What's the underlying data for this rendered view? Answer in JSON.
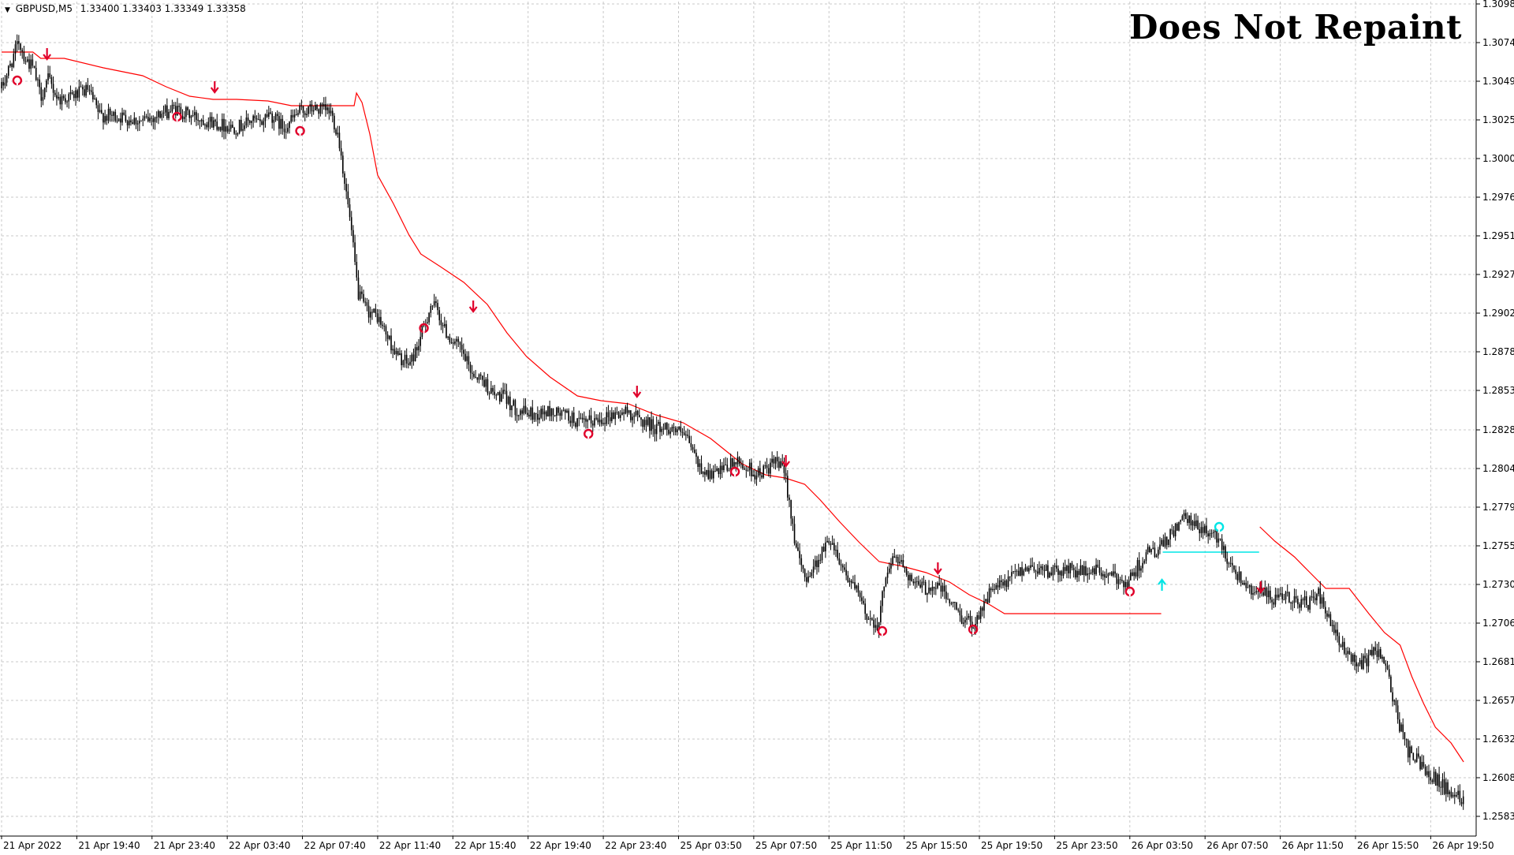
{
  "header": {
    "symbol": "GBPUSD,M5",
    "ohlc": "1.33400 1.33403 1.33349 1.33358"
  },
  "watermark": "Does Not Repaint",
  "colors": {
    "background": "#ffffff",
    "grid": "#c8c8c8",
    "candles": "#000000",
    "red_line": "#ff0000",
    "cyan_line": "#00e5e5",
    "red_arrow": "#e0002a",
    "cyan_arrow": "#00e5e5"
  },
  "chart_data": {
    "type": "candlestick",
    "title": "GBPUSD,M5",
    "ylim": [
      1.2571,
      1.31
    ],
    "xlim": [
      0,
      1880
    ],
    "price_axis_ticks": [
      "1.30985",
      "1.30740",
      "1.30495",
      "1.30250",
      "1.30005",
      "1.29760",
      "1.29515",
      "1.29270",
      "1.29025",
      "1.28780",
      "1.28535",
      "1.28285",
      "1.28040",
      "1.27795",
      "1.27550",
      "1.27305",
      "1.27060",
      "1.26815",
      "1.26570",
      "1.26325",
      "1.26080",
      "1.25835"
    ],
    "time_axis_ticks": [
      {
        "label": "21 Apr 2022",
        "x": 0
      },
      {
        "label": "21 Apr 19:40",
        "x": 96
      },
      {
        "label": "21 Apr 23:40",
        "x": 192
      },
      {
        "label": "22 Apr 03:40",
        "x": 288
      },
      {
        "label": "22 Apr 07:40",
        "x": 384
      },
      {
        "label": "22 Apr 11:40",
        "x": 480
      },
      {
        "label": "22 Apr 15:40",
        "x": 576
      },
      {
        "label": "22 Apr 19:40",
        "x": 672
      },
      {
        "label": "22 Apr 23:40",
        "x": 768
      },
      {
        "label": "25 Apr 03:50",
        "x": 864
      },
      {
        "label": "25 Apr 07:50",
        "x": 960
      },
      {
        "label": "25 Apr 11:50",
        "x": 1056
      },
      {
        "label": "25 Apr 15:50",
        "x": 1152
      },
      {
        "label": "25 Apr 19:50",
        "x": 1248
      },
      {
        "label": "25 Apr 23:50",
        "x": 1344
      },
      {
        "label": "26 Apr 03:50",
        "x": 1440
      },
      {
        "label": "26 Apr 07:50",
        "x": 1536
      },
      {
        "label": "26 Apr 11:50",
        "x": 1632
      },
      {
        "label": "26 Apr 15:50",
        "x": 1728
      },
      {
        "label": "26 Apr 19:50",
        "x": 1824
      }
    ],
    "price_path": [
      [
        0,
        1.3045
      ],
      [
        10,
        1.3058
      ],
      [
        22,
        1.3075
      ],
      [
        30,
        1.3064
      ],
      [
        40,
        1.3058
      ],
      [
        50,
        1.304
      ],
      [
        60,
        1.3051
      ],
      [
        72,
        1.3038
      ],
      [
        90,
        1.304
      ],
      [
        110,
        1.3044
      ],
      [
        125,
        1.3028
      ],
      [
        150,
        1.3027
      ],
      [
        180,
        1.3024
      ],
      [
        200,
        1.3028
      ],
      [
        220,
        1.3032
      ],
      [
        240,
        1.3028
      ],
      [
        260,
        1.3025
      ],
      [
        280,
        1.3022
      ],
      [
        300,
        1.302
      ],
      [
        320,
        1.3025
      ],
      [
        330,
        1.3022
      ],
      [
        340,
        1.303
      ],
      [
        350,
        1.3025
      ],
      [
        360,
        1.302
      ],
      [
        380,
        1.303
      ],
      [
        400,
        1.3032
      ],
      [
        420,
        1.303
      ],
      [
        430,
        1.3015
      ],
      [
        445,
        1.296
      ],
      [
        455,
        1.2915
      ],
      [
        465,
        1.2905
      ],
      [
        480,
        1.29
      ],
      [
        495,
        1.2885
      ],
      [
        505,
        1.2875
      ],
      [
        520,
        1.287
      ],
      [
        530,
        1.288
      ],
      [
        540,
        1.2895
      ],
      [
        548,
        1.2908
      ],
      [
        556,
        1.2905
      ],
      [
        565,
        1.2892
      ],
      [
        575,
        1.2885
      ],
      [
        585,
        1.288
      ],
      [
        600,
        1.2865
      ],
      [
        615,
        1.286
      ],
      [
        628,
        1.285
      ],
      [
        640,
        1.285
      ],
      [
        655,
        1.2842
      ],
      [
        665,
        1.284
      ],
      [
        680,
        1.2838
      ],
      [
        700,
        1.284
      ],
      [
        720,
        1.2838
      ],
      [
        740,
        1.2832
      ],
      [
        760,
        1.2835
      ],
      [
        780,
        1.2838
      ],
      [
        800,
        1.284
      ],
      [
        815,
        1.2835
      ],
      [
        835,
        1.283
      ],
      [
        855,
        1.283
      ],
      [
        870,
        1.2825
      ],
      [
        880,
        1.2818
      ],
      [
        890,
        1.2805
      ],
      [
        905,
        1.28
      ],
      [
        920,
        1.2802
      ],
      [
        935,
        1.2808
      ],
      [
        950,
        1.2805
      ],
      [
        965,
        1.28
      ],
      [
        980,
        1.2805
      ],
      [
        990,
        1.2808
      ],
      [
        1000,
        1.28
      ],
      [
        1008,
        1.2775
      ],
      [
        1015,
        1.275
      ],
      [
        1025,
        1.2735
      ],
      [
        1035,
        1.274
      ],
      [
        1048,
        1.2752
      ],
      [
        1058,
        1.276
      ],
      [
        1068,
        1.2748
      ],
      [
        1080,
        1.2735
      ],
      [
        1092,
        1.2725
      ],
      [
        1105,
        1.271
      ],
      [
        1120,
        1.2705
      ],
      [
        1128,
        1.2738
      ],
      [
        1140,
        1.2748
      ],
      [
        1152,
        1.2742
      ],
      [
        1165,
        1.273
      ],
      [
        1180,
        1.2728
      ],
      [
        1195,
        1.273
      ],
      [
        1210,
        1.272
      ],
      [
        1225,
        1.271
      ],
      [
        1240,
        1.2705
      ],
      [
        1250,
        1.2715
      ],
      [
        1265,
        1.2728
      ],
      [
        1280,
        1.273
      ],
      [
        1295,
        1.2738
      ],
      [
        1310,
        1.2742
      ],
      [
        1330,
        1.274
      ],
      [
        1345,
        1.2738
      ],
      [
        1360,
        1.274
      ],
      [
        1380,
        1.2738
      ],
      [
        1395,
        1.274
      ],
      [
        1410,
        1.2736
      ],
      [
        1425,
        1.2734
      ],
      [
        1438,
        1.2732
      ],
      [
        1450,
        1.2742
      ],
      [
        1462,
        1.275
      ],
      [
        1475,
        1.2752
      ],
      [
        1488,
        1.2758
      ],
      [
        1500,
        1.2768
      ],
      [
        1510,
        1.2772
      ],
      [
        1522,
        1.2768
      ],
      [
        1540,
        1.2764
      ],
      [
        1555,
        1.2758
      ],
      [
        1567,
        1.2745
      ],
      [
        1580,
        1.2735
      ],
      [
        1595,
        1.2728
      ],
      [
        1610,
        1.2725
      ],
      [
        1625,
        1.272
      ],
      [
        1640,
        1.2722
      ],
      [
        1655,
        1.272
      ],
      [
        1668,
        1.2718
      ],
      [
        1680,
        1.2725
      ],
      [
        1692,
        1.271
      ],
      [
        1705,
        1.2695
      ],
      [
        1720,
        1.2685
      ],
      [
        1735,
        1.268
      ],
      [
        1748,
        1.2685
      ],
      [
        1758,
        1.269
      ],
      [
        1765,
        1.2682
      ],
      [
        1775,
        1.266
      ],
      [
        1785,
        1.264
      ],
      [
        1795,
        1.2625
      ],
      [
        1805,
        1.262
      ],
      [
        1815,
        1.2615
      ],
      [
        1825,
        1.261
      ],
      [
        1835,
        1.2605
      ],
      [
        1845,
        1.26
      ],
      [
        1855,
        1.2598
      ],
      [
        1866,
        1.2595
      ]
    ],
    "red_line_segments": [
      [
        [
          0,
          1.3068
        ],
        [
          40,
          1.3068
        ],
        [
          50,
          1.3064
        ],
        [
          80,
          1.3064
        ],
        [
          130,
          1.3058
        ],
        [
          180,
          1.3053
        ],
        [
          210,
          1.3046
        ],
        [
          240,
          1.304
        ],
        [
          270,
          1.3038
        ],
        [
          300,
          1.3038
        ],
        [
          340,
          1.3037
        ],
        [
          370,
          1.3034
        ],
        [
          400,
          1.3034
        ]
      ],
      [
        [
          400,
          1.3034
        ],
        [
          450,
          1.3034
        ],
        [
          453,
          1.3042
        ],
        [
          460,
          1.3036
        ],
        [
          470,
          1.3016
        ],
        [
          480,
          1.299
        ],
        [
          500,
          1.2972
        ],
        [
          520,
          1.2952
        ],
        [
          535,
          1.294
        ],
        [
          560,
          1.2932
        ],
        [
          590,
          1.2922
        ],
        [
          620,
          1.2908
        ],
        [
          645,
          1.289
        ],
        [
          670,
          1.2875
        ],
        [
          700,
          1.2862
        ],
        [
          735,
          1.285
        ],
        [
          765,
          1.2847
        ],
        [
          800,
          1.2845
        ],
        [
          835,
          1.2838
        ],
        [
          870,
          1.2833
        ],
        [
          905,
          1.2823
        ],
        [
          925,
          1.2815
        ],
        [
          945,
          1.2807
        ],
        [
          975,
          1.28
        ],
        [
          1000,
          1.2798
        ],
        [
          1025,
          1.2794
        ],
        [
          1045,
          1.2784
        ],
        [
          1070,
          1.277
        ],
        [
          1095,
          1.2757
        ],
        [
          1120,
          1.2745
        ],
        [
          1150,
          1.2742
        ],
        [
          1180,
          1.2738
        ],
        [
          1210,
          1.2732
        ],
        [
          1235,
          1.2724
        ],
        [
          1260,
          1.2718
        ],
        [
          1280,
          1.2712
        ],
        [
          1300,
          1.2712
        ],
        [
          1340,
          1.2712
        ],
        [
          1380,
          1.2712
        ],
        [
          1420,
          1.2712
        ],
        [
          1445,
          1.2712
        ],
        [
          1480,
          1.2712
        ]
      ],
      [
        [
          1606,
          1.2767
        ],
        [
          1625,
          1.2758
        ],
        [
          1650,
          1.2748
        ],
        [
          1670,
          1.2738
        ],
        [
          1690,
          1.2728
        ],
        [
          1720,
          1.2728
        ],
        [
          1745,
          1.2712
        ],
        [
          1765,
          1.27
        ],
        [
          1785,
          1.2692
        ],
        [
          1800,
          1.2672
        ],
        [
          1815,
          1.2655
        ],
        [
          1830,
          1.264
        ],
        [
          1850,
          1.263
        ],
        [
          1866,
          1.2618
        ]
      ]
    ],
    "cyan_line": [
      [
        1482,
        1.2751
      ],
      [
        1605,
        1.2751
      ]
    ],
    "red_down_arrows": [
      {
        "x": 58,
        "y": 1.3066
      },
      {
        "x": 272,
        "y": 1.3045
      },
      {
        "x": 602,
        "y": 1.2906
      },
      {
        "x": 811,
        "y": 1.2852
      },
      {
        "x": 1001,
        "y": 1.2808
      },
      {
        "x": 1195,
        "y": 1.274
      },
      {
        "x": 1607,
        "y": 1.2728
      }
    ],
    "red_dot_markers": [
      {
        "x": 20,
        "y": 1.305
      },
      {
        "x": 224,
        "y": 1.3027
      },
      {
        "x": 381,
        "y": 1.3018
      },
      {
        "x": 539,
        "y": 1.2893
      },
      {
        "x": 749,
        "y": 1.2826
      },
      {
        "x": 936,
        "y": 1.2802
      },
      {
        "x": 1124,
        "y": 1.2701
      },
      {
        "x": 1240,
        "y": 1.2702
      },
      {
        "x": 1440,
        "y": 1.2726
      }
    ],
    "cyan_up_arrows": [
      {
        "x": 1481,
        "y": 1.2731
      }
    ],
    "cyan_dot_markers": [
      {
        "x": 1554,
        "y": 1.2767
      }
    ],
    "grid": true,
    "legend": "none"
  }
}
